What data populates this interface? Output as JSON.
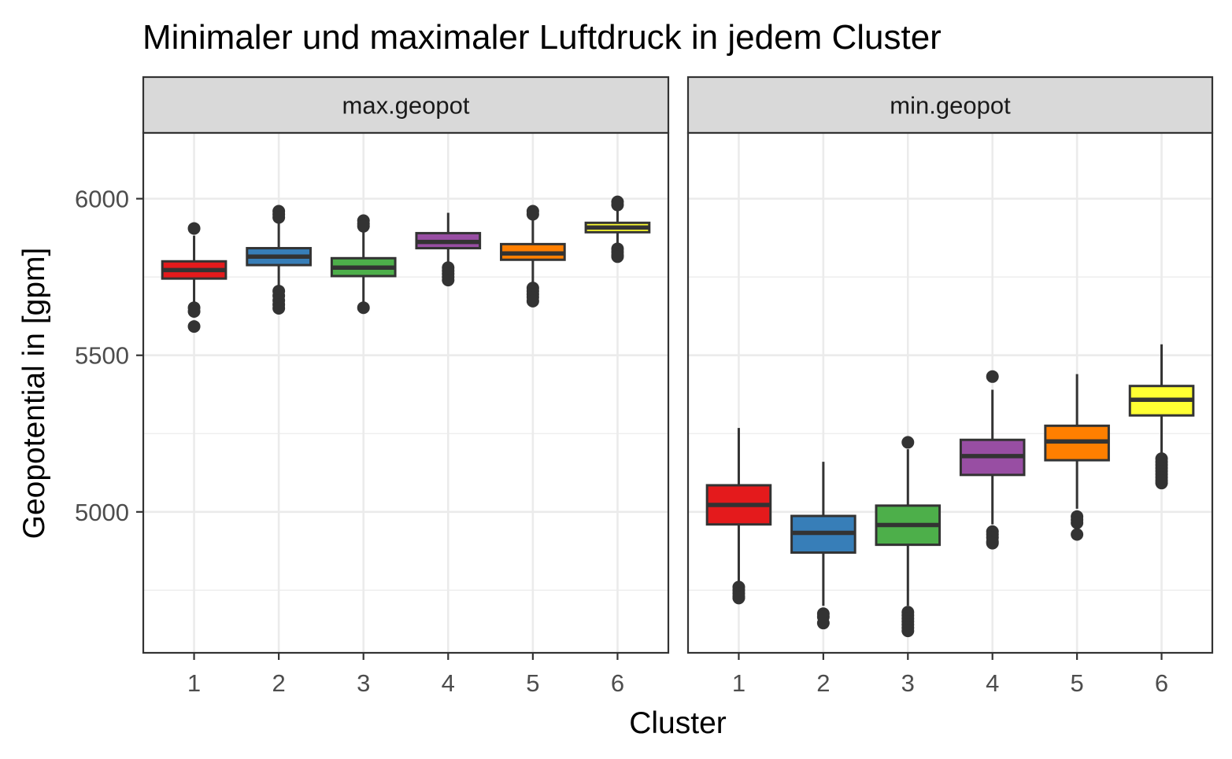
{
  "chart_data": {
    "type": "boxplot",
    "title": "Minimaler und maximaler Luftdruck in jedem Cluster",
    "xlabel": "Cluster",
    "ylabel": "Geopotential in [gpm]",
    "ylim": [
      4550,
      6210
    ],
    "y_ticks": [
      5000,
      5500,
      6000
    ],
    "categories": [
      "1",
      "2",
      "3",
      "4",
      "5",
      "6"
    ],
    "colors": [
      "#E41A1C",
      "#377EB8",
      "#4DAF4A",
      "#984EA3",
      "#FF7F00",
      "#FFFF33"
    ],
    "grid": true,
    "facets": [
      {
        "label": "max.geopot",
        "boxes": [
          {
            "category": "1",
            "lower_whisker": 5670,
            "q1": 5745,
            "median": 5772,
            "q3": 5800,
            "upper_whisker": 5882,
            "outliers": [
              5905,
              5652,
              5640,
              5592
            ]
          },
          {
            "category": "2",
            "lower_whisker": 5720,
            "q1": 5788,
            "median": 5815,
            "q3": 5842,
            "upper_whisker": 5925,
            "outliers": [
              5960,
              5950,
              5940,
              5705,
              5690,
              5675,
              5662,
              5650
            ]
          },
          {
            "category": "3",
            "lower_whisker": 5670,
            "q1": 5753,
            "median": 5780,
            "q3": 5810,
            "upper_whisker": 5905,
            "outliers": [
              5930,
              5920,
              5912,
              5652
            ]
          },
          {
            "category": "4",
            "lower_whisker": 5785,
            "q1": 5842,
            "median": 5862,
            "q3": 5890,
            "upper_whisker": 5955,
            "outliers": [
              5780,
              5770,
              5760,
              5750,
              5740
            ]
          },
          {
            "category": "5",
            "lower_whisker": 5730,
            "q1": 5805,
            "median": 5825,
            "q3": 5855,
            "upper_whisker": 5935,
            "outliers": [
              5960,
              5950,
              5715,
              5705,
              5695,
              5685,
              5673
            ]
          },
          {
            "category": "6",
            "lower_whisker": 5850,
            "q1": 5893,
            "median": 5908,
            "q3": 5923,
            "upper_whisker": 5968,
            "outliers": [
              5990,
              5980,
              5840,
              5830,
              5820,
              5815
            ]
          }
        ]
      },
      {
        "label": "min.geopot",
        "boxes": [
          {
            "category": "1",
            "lower_whisker": 4770,
            "q1": 4960,
            "median": 5022,
            "q3": 5085,
            "upper_whisker": 5268,
            "outliers": [
              4760,
              4750,
              4740,
              4730,
              4725
            ]
          },
          {
            "category": "2",
            "lower_whisker": 4700,
            "q1": 4870,
            "median": 4933,
            "q3": 4987,
            "upper_whisker": 5160,
            "outliers": [
              4675,
              4665,
              4645
            ]
          },
          {
            "category": "3",
            "lower_whisker": 4700,
            "q1": 4895,
            "median": 4958,
            "q3": 5020,
            "upper_whisker": 5200,
            "outliers": [
              5222,
              4680,
              4670,
              4660,
              4650,
              4640,
              4630,
              4620
            ]
          },
          {
            "category": "4",
            "lower_whisker": 4960,
            "q1": 5118,
            "median": 5178,
            "q3": 5230,
            "upper_whisker": 5390,
            "outliers": [
              5432,
              4937,
              4928,
              4918,
              4905,
              4900
            ]
          },
          {
            "category": "5",
            "lower_whisker": 5010,
            "q1": 5165,
            "median": 5225,
            "q3": 5275,
            "upper_whisker": 5440,
            "outliers": [
              4985,
              4975,
              4965,
              4928
            ]
          },
          {
            "category": "6",
            "lower_whisker": 5180,
            "q1": 5308,
            "median": 5358,
            "q3": 5402,
            "upper_whisker": 5535,
            "outliers": [
              5170,
              5160,
              5150,
              5140,
              5130,
              5120,
              5110,
              5100,
              5092
            ]
          }
        ]
      }
    ]
  }
}
